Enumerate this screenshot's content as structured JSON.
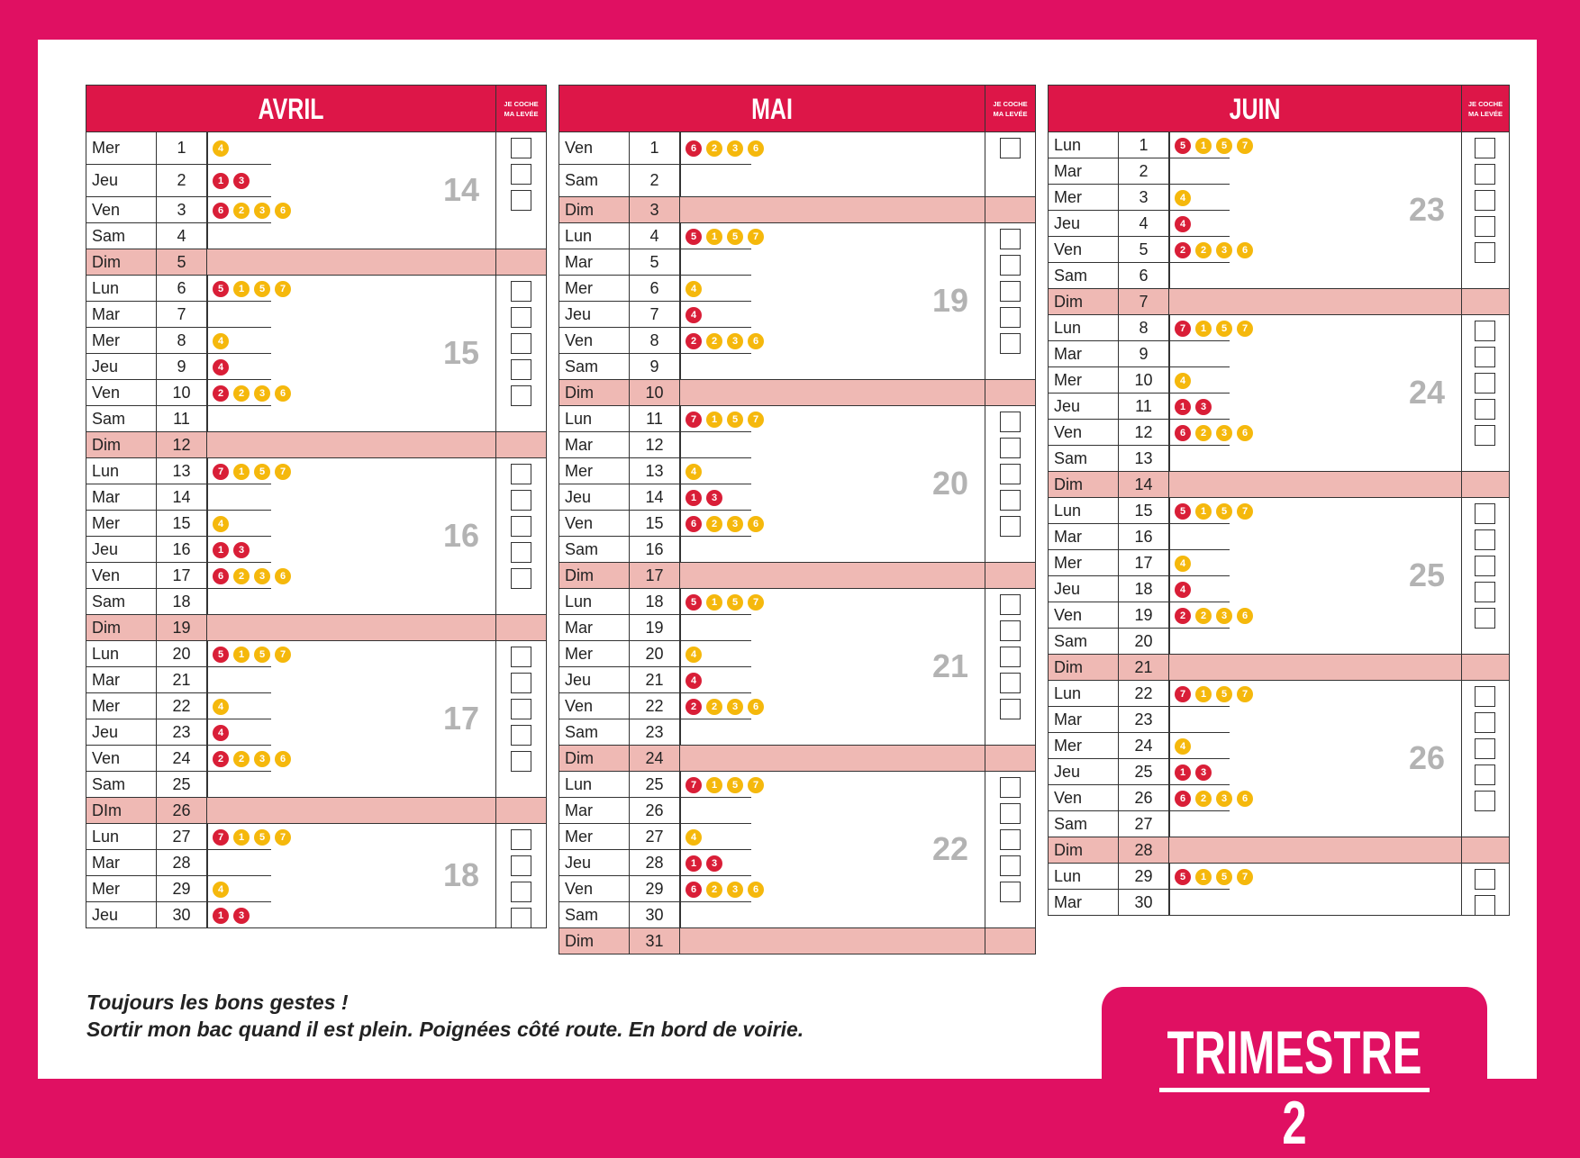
{
  "check_header": [
    "JE COCHE",
    "MA LEVÉE"
  ],
  "months": [
    {
      "name": "AVRIL",
      "days": [
        [
          "Mer",
          "1"
        ],
        [
          "Jeu",
          "2"
        ],
        [
          "Ven",
          "3"
        ],
        [
          "Sam",
          "4"
        ],
        [
          "Dim",
          "5"
        ],
        [
          "Lun",
          "6"
        ],
        [
          "Mar",
          "7"
        ],
        [
          "Mer",
          "8"
        ],
        [
          "Jeu",
          "9"
        ],
        [
          "Ven",
          "10"
        ],
        [
          "Sam",
          "11"
        ],
        [
          "Dim",
          "12"
        ],
        [
          "Lun",
          "13"
        ],
        [
          "Mar",
          "14"
        ],
        [
          "Mer",
          "15"
        ],
        [
          "Jeu",
          "16"
        ],
        [
          "Ven",
          "17"
        ],
        [
          "Sam",
          "18"
        ],
        [
          "Dim",
          "19"
        ],
        [
          "Lun",
          "20"
        ],
        [
          "Mar",
          "21"
        ],
        [
          "Mer",
          "22"
        ],
        [
          "Jeu",
          "23"
        ],
        [
          "Ven",
          "24"
        ],
        [
          "Sam",
          "25"
        ],
        [
          "DIm",
          "26"
        ],
        [
          "Lun",
          "27"
        ],
        [
          "Mar",
          "28"
        ],
        [
          "Mer",
          "29"
        ],
        [
          "Jeu",
          "30"
        ]
      ],
      "weeks": [
        {
          "num": "14",
          "start": 0,
          "end": 3,
          "checkboxes": 3
        },
        {
          "num": "15",
          "start": 5,
          "end": 10,
          "checkboxes": 5
        },
        {
          "num": "16",
          "start": 12,
          "end": 17,
          "checkboxes": 5
        },
        {
          "num": "17",
          "start": 19,
          "end": 24,
          "checkboxes": 5
        },
        {
          "num": "18",
          "start": 26,
          "end": 29,
          "checkboxes": 4
        }
      ],
      "collections": [
        {
          "row": 0,
          "icons": [
            [
              "4",
              "y"
            ]
          ]
        },
        {
          "row": 1,
          "icons": [
            [
              "1",
              "r"
            ],
            [
              "3",
              "r"
            ]
          ]
        },
        {
          "row": 2,
          "icons": [
            [
              "6",
              "r"
            ],
            [
              "2",
              "y"
            ],
            [
              "3",
              "y"
            ],
            [
              "6",
              "y"
            ]
          ]
        },
        {
          "row": 5,
          "icons": [
            [
              "5",
              "r"
            ],
            [
              "1",
              "y"
            ],
            [
              "5",
              "y"
            ],
            [
              "7",
              "y"
            ]
          ]
        },
        {
          "row": 7,
          "icons": [
            [
              "4",
              "y"
            ]
          ]
        },
        {
          "row": 8,
          "icons": [
            [
              "4",
              "r"
            ]
          ]
        },
        {
          "row": 9,
          "icons": [
            [
              "2",
              "r"
            ],
            [
              "2",
              "y"
            ],
            [
              "3",
              "y"
            ],
            [
              "6",
              "y"
            ]
          ]
        },
        {
          "row": 12,
          "icons": [
            [
              "7",
              "r"
            ],
            [
              "1",
              "y"
            ],
            [
              "5",
              "y"
            ],
            [
              "7",
              "y"
            ]
          ]
        },
        {
          "row": 14,
          "icons": [
            [
              "4",
              "y"
            ]
          ]
        },
        {
          "row": 15,
          "icons": [
            [
              "1",
              "r"
            ],
            [
              "3",
              "r"
            ]
          ]
        },
        {
          "row": 16,
          "icons": [
            [
              "6",
              "r"
            ],
            [
              "2",
              "y"
            ],
            [
              "3",
              "y"
            ],
            [
              "6",
              "y"
            ]
          ]
        },
        {
          "row": 19,
          "icons": [
            [
              "5",
              "r"
            ],
            [
              "1",
              "y"
            ],
            [
              "5",
              "y"
            ],
            [
              "7",
              "y"
            ]
          ]
        },
        {
          "row": 21,
          "icons": [
            [
              "4",
              "y"
            ]
          ]
        },
        {
          "row": 22,
          "icons": [
            [
              "4",
              "r"
            ]
          ]
        },
        {
          "row": 23,
          "icons": [
            [
              "2",
              "r"
            ],
            [
              "2",
              "y"
            ],
            [
              "3",
              "y"
            ],
            [
              "6",
              "y"
            ]
          ]
        },
        {
          "row": 26,
          "icons": [
            [
              "7",
              "r"
            ],
            [
              "1",
              "y"
            ],
            [
              "5",
              "y"
            ],
            [
              "7",
              "y"
            ]
          ]
        },
        {
          "row": 28,
          "icons": [
            [
              "4",
              "y"
            ]
          ]
        },
        {
          "row": 29,
          "icons": [
            [
              "1",
              "r"
            ],
            [
              "3",
              "r"
            ]
          ]
        }
      ]
    },
    {
      "name": "MAI",
      "days": [
        [
          "Ven",
          "1"
        ],
        [
          "Sam",
          "2"
        ],
        [
          "Dim",
          "3"
        ],
        [
          "Lun",
          "4"
        ],
        [
          "Mar",
          "5"
        ],
        [
          "Mer",
          "6"
        ],
        [
          "Jeu",
          "7"
        ],
        [
          "Ven",
          "8"
        ],
        [
          "Sam",
          "9"
        ],
        [
          "Dim",
          "10"
        ],
        [
          "Lun",
          "11"
        ],
        [
          "Mar",
          "12"
        ],
        [
          "Mer",
          "13"
        ],
        [
          "Jeu",
          "14"
        ],
        [
          "Ven",
          "15"
        ],
        [
          "Sam",
          "16"
        ],
        [
          "Dim",
          "17"
        ],
        [
          "Lun",
          "18"
        ],
        [
          "Mar",
          "19"
        ],
        [
          "Mer",
          "20"
        ],
        [
          "Jeu",
          "21"
        ],
        [
          "Ven",
          "22"
        ],
        [
          "Sam",
          "23"
        ],
        [
          "Dim",
          "24"
        ],
        [
          "Lun",
          "25"
        ],
        [
          "Mar",
          "26"
        ],
        [
          "Mer",
          "27"
        ],
        [
          "Jeu",
          "28"
        ],
        [
          "Ven",
          "29"
        ],
        [
          "Sam",
          "30"
        ],
        [
          "Dim",
          "31"
        ]
      ],
      "weeks": [
        {
          "num": "",
          "start": 0,
          "end": 1,
          "checkboxes": 1
        },
        {
          "num": "19",
          "start": 3,
          "end": 8,
          "checkboxes": 5
        },
        {
          "num": "20",
          "start": 10,
          "end": 15,
          "checkboxes": 5
        },
        {
          "num": "21",
          "start": 17,
          "end": 22,
          "checkboxes": 5
        },
        {
          "num": "22",
          "start": 24,
          "end": 29,
          "checkboxes": 5
        }
      ],
      "collections": [
        {
          "row": 0,
          "icons": [
            [
              "6",
              "r"
            ],
            [
              "2",
              "y"
            ],
            [
              "3",
              "y"
            ],
            [
              "6",
              "y"
            ]
          ]
        },
        {
          "row": 3,
          "icons": [
            [
              "5",
              "r"
            ],
            [
              "1",
              "y"
            ],
            [
              "5",
              "y"
            ],
            [
              "7",
              "y"
            ]
          ]
        },
        {
          "row": 5,
          "icons": [
            [
              "4",
              "y"
            ]
          ]
        },
        {
          "row": 6,
          "icons": [
            [
              "4",
              "r"
            ]
          ]
        },
        {
          "row": 7,
          "icons": [
            [
              "2",
              "r"
            ],
            [
              "2",
              "y"
            ],
            [
              "3",
              "y"
            ],
            [
              "6",
              "y"
            ]
          ]
        },
        {
          "row": 10,
          "icons": [
            [
              "7",
              "r"
            ],
            [
              "1",
              "y"
            ],
            [
              "5",
              "y"
            ],
            [
              "7",
              "y"
            ]
          ]
        },
        {
          "row": 12,
          "icons": [
            [
              "4",
              "y"
            ]
          ]
        },
        {
          "row": 13,
          "icons": [
            [
              "1",
              "r"
            ],
            [
              "3",
              "r"
            ]
          ]
        },
        {
          "row": 14,
          "icons": [
            [
              "6",
              "r"
            ],
            [
              "2",
              "y"
            ],
            [
              "3",
              "y"
            ],
            [
              "6",
              "y"
            ]
          ]
        },
        {
          "row": 17,
          "icons": [
            [
              "5",
              "r"
            ],
            [
              "1",
              "y"
            ],
            [
              "5",
              "y"
            ],
            [
              "7",
              "y"
            ]
          ]
        },
        {
          "row": 19,
          "icons": [
            [
              "4",
              "y"
            ]
          ]
        },
        {
          "row": 20,
          "icons": [
            [
              "4",
              "r"
            ]
          ]
        },
        {
          "row": 21,
          "icons": [
            [
              "2",
              "r"
            ],
            [
              "2",
              "y"
            ],
            [
              "3",
              "y"
            ],
            [
              "6",
              "y"
            ]
          ]
        },
        {
          "row": 24,
          "icons": [
            [
              "7",
              "r"
            ],
            [
              "1",
              "y"
            ],
            [
              "5",
              "y"
            ],
            [
              "7",
              "y"
            ]
          ]
        },
        {
          "row": 26,
          "icons": [
            [
              "4",
              "y"
            ]
          ]
        },
        {
          "row": 27,
          "icons": [
            [
              "1",
              "r"
            ],
            [
              "3",
              "r"
            ]
          ]
        },
        {
          "row": 28,
          "icons": [
            [
              "6",
              "r"
            ],
            [
              "2",
              "y"
            ],
            [
              "3",
              "y"
            ],
            [
              "6",
              "y"
            ]
          ]
        }
      ]
    },
    {
      "name": "JUIN",
      "days": [
        [
          "Lun",
          "1"
        ],
        [
          "Mar",
          "2"
        ],
        [
          "Mer",
          "3"
        ],
        [
          "Jeu",
          "4"
        ],
        [
          "Ven",
          "5"
        ],
        [
          "Sam",
          "6"
        ],
        [
          "Dim",
          "7"
        ],
        [
          "Lun",
          "8"
        ],
        [
          "Mar",
          "9"
        ],
        [
          "Mer",
          "10"
        ],
        [
          "Jeu",
          "11"
        ],
        [
          "Ven",
          "12"
        ],
        [
          "Sam",
          "13"
        ],
        [
          "Dim",
          "14"
        ],
        [
          "Lun",
          "15"
        ],
        [
          "Mar",
          "16"
        ],
        [
          "Mer",
          "17"
        ],
        [
          "Jeu",
          "18"
        ],
        [
          "Ven",
          "19"
        ],
        [
          "Sam",
          "20"
        ],
        [
          "Dim",
          "21"
        ],
        [
          "Lun",
          "22"
        ],
        [
          "Mar",
          "23"
        ],
        [
          "Mer",
          "24"
        ],
        [
          "Jeu",
          "25"
        ],
        [
          "Ven",
          "26"
        ],
        [
          "Sam",
          "27"
        ],
        [
          "Dim",
          "28"
        ],
        [
          "Lun",
          "29"
        ],
        [
          "Mar",
          "30"
        ]
      ],
      "weeks": [
        {
          "num": "23",
          "start": 0,
          "end": 5,
          "checkboxes": 5
        },
        {
          "num": "24",
          "start": 7,
          "end": 12,
          "checkboxes": 5
        },
        {
          "num": "25",
          "start": 14,
          "end": 19,
          "checkboxes": 5
        },
        {
          "num": "26",
          "start": 21,
          "end": 26,
          "checkboxes": 5
        },
        {
          "num": "",
          "start": 28,
          "end": 29,
          "checkboxes": 2
        }
      ],
      "collections": [
        {
          "row": 0,
          "icons": [
            [
              "5",
              "r"
            ],
            [
              "1",
              "y"
            ],
            [
              "5",
              "y"
            ],
            [
              "7",
              "y"
            ]
          ]
        },
        {
          "row": 2,
          "icons": [
            [
              "4",
              "y"
            ]
          ]
        },
        {
          "row": 3,
          "icons": [
            [
              "4",
              "r"
            ]
          ]
        },
        {
          "row": 4,
          "icons": [
            [
              "2",
              "r"
            ],
            [
              "2",
              "y"
            ],
            [
              "3",
              "y"
            ],
            [
              "6",
              "y"
            ]
          ]
        },
        {
          "row": 7,
          "icons": [
            [
              "7",
              "r"
            ],
            [
              "1",
              "y"
            ],
            [
              "5",
              "y"
            ],
            [
              "7",
              "y"
            ]
          ]
        },
        {
          "row": 9,
          "icons": [
            [
              "4",
              "y"
            ]
          ]
        },
        {
          "row": 10,
          "icons": [
            [
              "1",
              "r"
            ],
            [
              "3",
              "r"
            ]
          ]
        },
        {
          "row": 11,
          "icons": [
            [
              "6",
              "r"
            ],
            [
              "2",
              "y"
            ],
            [
              "3",
              "y"
            ],
            [
              "6",
              "y"
            ]
          ]
        },
        {
          "row": 14,
          "icons": [
            [
              "5",
              "r"
            ],
            [
              "1",
              "y"
            ],
            [
              "5",
              "y"
            ],
            [
              "7",
              "y"
            ]
          ]
        },
        {
          "row": 16,
          "icons": [
            [
              "4",
              "y"
            ]
          ]
        },
        {
          "row": 17,
          "icons": [
            [
              "4",
              "r"
            ]
          ]
        },
        {
          "row": 18,
          "icons": [
            [
              "2",
              "r"
            ],
            [
              "2",
              "y"
            ],
            [
              "3",
              "y"
            ],
            [
              "6",
              "y"
            ]
          ]
        },
        {
          "row": 21,
          "icons": [
            [
              "7",
              "r"
            ],
            [
              "1",
              "y"
            ],
            [
              "5",
              "y"
            ],
            [
              "7",
              "y"
            ]
          ]
        },
        {
          "row": 23,
          "icons": [
            [
              "4",
              "y"
            ]
          ]
        },
        {
          "row": 24,
          "icons": [
            [
              "1",
              "r"
            ],
            [
              "3",
              "r"
            ]
          ]
        },
        {
          "row": 25,
          "icons": [
            [
              "6",
              "r"
            ],
            [
              "2",
              "y"
            ],
            [
              "3",
              "y"
            ],
            [
              "6",
              "y"
            ]
          ]
        },
        {
          "row": 28,
          "icons": [
            [
              "5",
              "r"
            ],
            [
              "1",
              "y"
            ],
            [
              "5",
              "y"
            ],
            [
              "7",
              "y"
            ]
          ]
        }
      ]
    }
  ],
  "footer": {
    "line1": "Toujours les bons gestes !",
    "line2": "Sortir mon bac quand il est plein. Poignées côté route. En bord de voirie."
  },
  "trimester": {
    "label": "TRIMESTRE 2"
  }
}
